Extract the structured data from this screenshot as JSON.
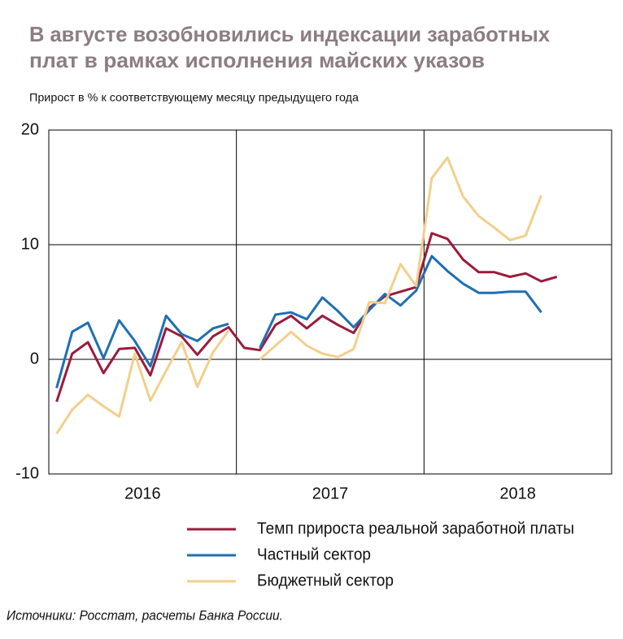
{
  "chart_data": {
    "type": "line",
    "title": [
      "В августе возобновились индексации заработных",
      "плат в рамках исполнения майских указов"
    ],
    "subtitle": "Прирост в % к соответствующему месяцу предыдущего года",
    "source": "Источники: Росстат, расчеты Банка России.",
    "year_labels": [
      "2016",
      "2017",
      "2018"
    ],
    "categories": [
      null,
      null,
      null,
      null,
      null,
      null,
      null,
      null,
      null,
      null,
      null,
      null,
      null,
      null,
      null,
      null,
      null,
      null,
      null,
      null,
      null,
      null,
      null,
      null,
      null,
      null,
      null,
      null,
      null,
      null,
      null,
      null,
      null,
      null,
      null,
      null
    ],
    "ylim": [
      -10,
      20
    ],
    "yticks": [
      -10,
      0,
      10,
      20
    ],
    "grid": true,
    "series": [
      {
        "name": "Темп прироста реальной заработной платы",
        "color": "#9b1b3c",
        "values": [
          -3.7,
          0.5,
          1.5,
          -1.2,
          0.9,
          1.0,
          -1.4,
          2.7,
          2.0,
          0.4,
          2.0,
          2.8,
          1.0,
          0.8,
          3.0,
          3.8,
          2.7,
          3.8,
          3.0,
          2.3,
          4.5,
          5.5,
          5.9,
          6.3,
          11.0,
          10.5,
          8.7,
          7.6,
          7.6,
          7.2,
          7.5,
          6.8,
          7.2,
          null,
          null,
          null
        ]
      },
      {
        "name": "Частный сектор",
        "color": "#1f6fb2",
        "values": [
          -2.5,
          2.4,
          3.2,
          0.1,
          3.4,
          1.6,
          -0.6,
          3.8,
          2.2,
          1.6,
          2.7,
          3.1,
          null,
          1.0,
          3.9,
          4.1,
          3.5,
          5.4,
          4.2,
          2.8,
          4.3,
          5.7,
          4.7,
          6.0,
          9.0,
          7.7,
          6.6,
          5.8,
          5.8,
          5.9,
          5.9,
          4.1,
          null,
          null,
          null,
          null
        ]
      },
      {
        "name": "Бюджетный сектор",
        "color": "#f2cf8c",
        "values": [
          -6.5,
          -4.4,
          -3.1,
          -4.1,
          -5.0,
          0.5,
          -3.6,
          -1.0,
          1.5,
          -2.4,
          0.6,
          2.5,
          null,
          0.0,
          1.2,
          2.4,
          1.2,
          0.5,
          0.2,
          0.9,
          5.0,
          4.9,
          8.3,
          6.4,
          15.8,
          17.6,
          14.2,
          12.5,
          11.5,
          10.4,
          10.8,
          14.3,
          null,
          null,
          null,
          null
        ]
      }
    ]
  }
}
